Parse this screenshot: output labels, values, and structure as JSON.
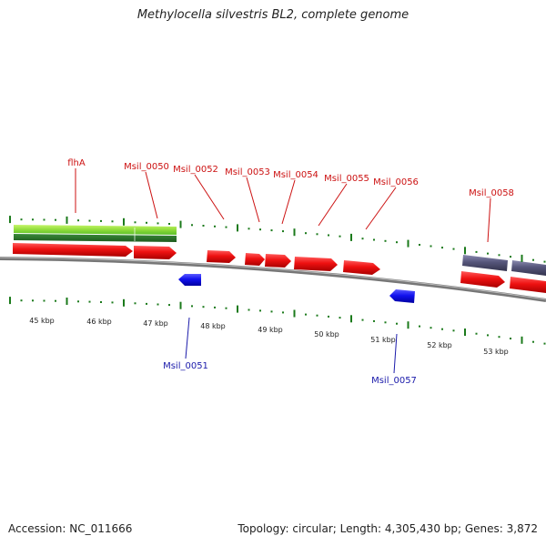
{
  "title": "Methylocella silvestris BL2, complete genome",
  "footer": {
    "accession": "Accession: NC_011666",
    "info": "Topology: circular; Length: 4,305,430 bp; Genes: 3,872"
  },
  "colors": {
    "forward_gene": "#ee1111",
    "reverse_gene": "#1111ee",
    "rna_feature": "#55557a",
    "green_feature": "#5bbf2a",
    "tick": "#1b7a1b",
    "backbone": "#888888",
    "label_red": "#cc1111",
    "label_blue": "#1a1aaa"
  },
  "scale_labels": [
    "45 kbp",
    "46 kbp",
    "47 kbp",
    "48 kbp",
    "49 kbp",
    "50 kbp",
    "51 kbp",
    "52 kbp",
    "53 kbp"
  ],
  "forward_labels": [
    "flhA",
    "Msil_0050",
    "Msil_0052",
    "Msil_0053",
    "Msil_0054",
    "Msil_0055",
    "Msil_0056",
    "Msil_0058"
  ],
  "reverse_labels": [
    "Msil_0051",
    "Msil_0057"
  ]
}
